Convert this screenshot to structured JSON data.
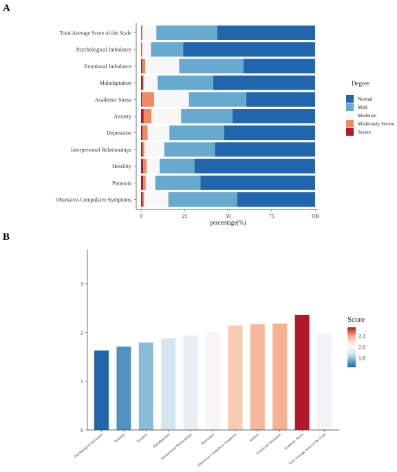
{
  "panels": {
    "a": "A",
    "b": "B"
  },
  "chart_data": [
    {
      "type": "bar",
      "orientation": "horizontal",
      "stacked": true,
      "categories": [
        "Total Average Score of the Scale",
        "Psychological Imbalance",
        "Emotional Imbalance",
        "Maladaptation",
        "Academic Stress",
        "Anxiety",
        "Depression",
        "Interpersonal Relationships",
        "Hostility",
        "Paranoia",
        "Obsessive-Compulsive Symptoms"
      ],
      "series": [
        {
          "name": "Severe",
          "color": "#b2182b",
          "values": [
            0.2,
            0.3,
            0.6,
            1.0,
            0.5,
            1.5,
            0.8,
            0.9,
            1.2,
            1.2,
            0.9
          ]
        },
        {
          "name": "Moderately Severe",
          "color": "#ef8a62",
          "values": [
            0.6,
            0.4,
            1.8,
            0.5,
            7.0,
            4.5,
            3.0,
            1.0,
            2.0,
            1.5,
            0.8
          ]
        },
        {
          "name": "Moderate",
          "color": "#f7f7f7",
          "values": [
            8.0,
            5.0,
            19.5,
            8.0,
            20.0,
            17.0,
            12.5,
            11.5,
            7.5,
            5.5,
            14.0
          ]
        },
        {
          "name": "Mild",
          "color": "#67a9cf",
          "values": [
            35.0,
            18.5,
            37.0,
            32.0,
            33.0,
            29.5,
            31.5,
            29.0,
            20.0,
            26.0,
            39.5
          ]
        },
        {
          "name": "Normal",
          "color": "#2166ac",
          "values": [
            56.2,
            75.8,
            41.1,
            58.5,
            39.5,
            47.5,
            52.2,
            57.6,
            69.3,
            65.8,
            44.8
          ]
        }
      ],
      "legend_title": "Degree",
      "legend_order": [
        "Normal",
        "Mild",
        "Moderate",
        "Moderately Severe",
        "Severe"
      ],
      "legend_position": "right",
      "xlabel": "percentage(%)",
      "xlim": [
        0,
        100
      ],
      "xticks": [
        "0",
        "25",
        "50",
        "75",
        "100"
      ]
    },
    {
      "type": "bar",
      "categories": [
        "Psychological Imbalance",
        "Hostility",
        "Paranoia",
        "Maladaptation",
        "Interpersonal Relationships",
        "Depression",
        "Obsessive-Compulsive Symptoms",
        "Anxiety",
        "Emotional Imbalance",
        "Academic Stress",
        "Total Average Score of the Scale"
      ],
      "values": [
        1.63,
        1.71,
        1.79,
        1.88,
        1.94,
        2.0,
        2.14,
        2.17,
        2.18,
        2.36,
        1.98
      ],
      "ylim": [
        0,
        3.7
      ],
      "yticks": [
        "0",
        "1",
        "2",
        "3"
      ],
      "colorbar": {
        "title": "Score",
        "min": 1.63,
        "max": 2.36,
        "ticks": [
          "1.8",
          "2.0",
          "2.2"
        ],
        "palette": [
          "#2166ac",
          "#67a9cf",
          "#d1e5f0",
          "#f7f7f7",
          "#fddbc7",
          "#ef8a62",
          "#b2182b"
        ]
      }
    }
  ]
}
